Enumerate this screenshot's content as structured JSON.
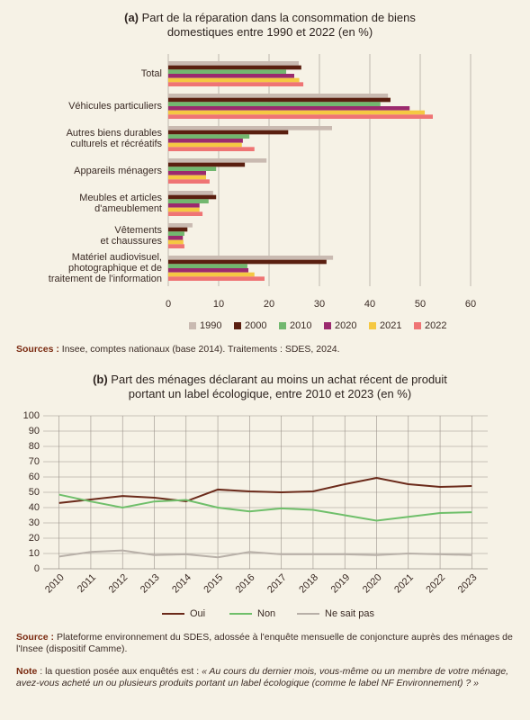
{
  "chart_data": [
    {
      "type": "bar",
      "orientation": "horizontal",
      "label": "(a)",
      "title": "Part de la réparation dans la consommation de biens\ndomestiques entre 1990 et 2022 (en %)",
      "categories": [
        "Total",
        "Véhicules particuliers",
        "Autres biens durables\nculturels et récréatifs",
        "Appareils ménagers",
        "Meubles et articles\nd'ameublement",
        "Vêtements\net chaussures",
        "Matériel audiovisuel,\nphotographique et de\ntraitement de l'information"
      ],
      "series": [
        {
          "name": "1990",
          "color": "#c9bab1",
          "values": [
            25.9,
            43.6,
            32.5,
            19.5,
            8.9,
            4.8,
            32.7
          ]
        },
        {
          "name": "2000",
          "color": "#5a1f10",
          "values": [
            26.4,
            44.1,
            23.8,
            15.2,
            9.5,
            3.8,
            31.4
          ]
        },
        {
          "name": "2010",
          "color": "#72b86f",
          "values": [
            23.4,
            42.1,
            16.1,
            9.5,
            8.0,
            3.2,
            15.7
          ]
        },
        {
          "name": "2020",
          "color": "#9b2a6e",
          "values": [
            25.0,
            47.9,
            14.8,
            7.5,
            6.2,
            2.9,
            15.9
          ]
        },
        {
          "name": "2021",
          "color": "#f5c842",
          "values": [
            26.0,
            50.9,
            14.6,
            7.5,
            6.2,
            3.0,
            17.1
          ]
        },
        {
          "name": "2022",
          "color": "#ef7474",
          "values": [
            26.8,
            52.5,
            17.1,
            8.2,
            6.8,
            3.2,
            19.1
          ]
        }
      ],
      "xlim": [
        0,
        60
      ],
      "xticks": [
        0,
        10,
        20,
        30,
        40,
        50,
        60
      ],
      "grid": true,
      "legend": "bottom",
      "source_label": "Sources :",
      "source": "Insee, comptes nationaux (base 2014). Traitements : SDES, 2024."
    },
    {
      "type": "line",
      "label": "(b)",
      "title": "Part des ménages déclarant au moins un achat récent de produit\nportant un label écologique, entre 2010 et 2023 (en %)",
      "categories": [
        "2010",
        "2011",
        "2012",
        "2013",
        "2014",
        "2015",
        "2016",
        "2017",
        "2018",
        "2019",
        "2020",
        "2021",
        "2022",
        "2023"
      ],
      "series": [
        {
          "name": "Oui",
          "color": "#6b2a1a",
          "values": [
            43,
            45.3,
            47.6,
            46.5,
            44.1,
            51.8,
            50.6,
            50,
            50.6,
            55.3,
            59.4,
            55.3,
            53.5,
            54.1
          ]
        },
        {
          "name": "Non",
          "color": "#6fbf6a",
          "values": [
            48.5,
            44,
            40,
            44,
            45,
            40,
            37.5,
            39.5,
            38.5,
            35,
            31.5,
            34,
            36.5,
            37
          ]
        },
        {
          "name": "Ne sait pas",
          "color": "#b8b0a8",
          "values": [
            8,
            11,
            12,
            9,
            9.5,
            7.5,
            11,
            9.5,
            9.5,
            9.5,
            9,
            10,
            9.5,
            9
          ]
        }
      ],
      "ylim": [
        0,
        100
      ],
      "yticks": [
        0,
        10,
        20,
        30,
        40,
        50,
        60,
        70,
        80,
        90,
        100
      ],
      "grid": true,
      "legend": "bottom",
      "source_label": "Source :",
      "source": "Plateforme environnement du SDES, adossée à l'enquête mensuelle de conjoncture auprès des ménages de l'Insee (dispositif Camme)."
    }
  ],
  "note": {
    "label": "Note",
    "text": " : la question posée aux enquêtés est : ",
    "quote": "« Au cours du dernier mois, vous-même ou un membre de votre ménage, avez-vous acheté un ou plusieurs produits portant un label écologique (comme le label NF Environnement) ? »"
  }
}
